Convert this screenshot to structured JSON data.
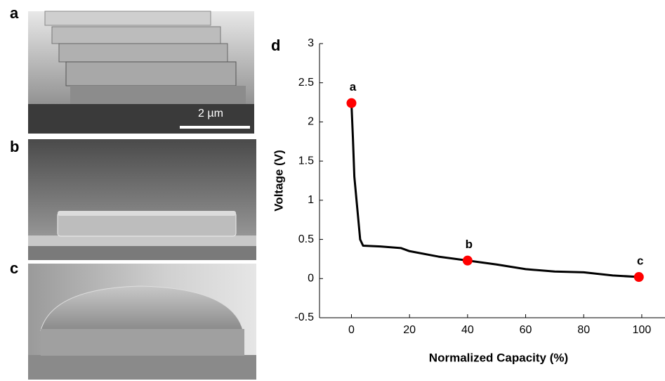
{
  "figure": {
    "panel_labels": [
      "a",
      "b",
      "c"
    ],
    "scale_bar": "2 µm"
  },
  "chart_data": {
    "type": "line",
    "panel_label": "d",
    "x_label": "Normalized Capacity (%)",
    "y_label": "Voltage (V)",
    "x": [
      0,
      0.5,
      1,
      2,
      3,
      4,
      10,
      17,
      20,
      30,
      40,
      50,
      60,
      70,
      80,
      90,
      99
    ],
    "series": [
      {
        "color": "#000000",
        "values": [
          2.24,
          1.8,
          1.3,
          0.9,
          0.5,
          0.42,
          0.41,
          0.39,
          0.35,
          0.28,
          0.23,
          0.18,
          0.12,
          0.09,
          0.08,
          0.04,
          0.02
        ]
      }
    ],
    "markers": {
      "color": "#ff0000",
      "x": [
        0,
        40,
        99
      ],
      "values": [
        2.24,
        0.23,
        0.02
      ],
      "labels": [
        "a",
        "b",
        "c"
      ]
    },
    "xlim": [
      -11,
      108
    ],
    "ylim": [
      -0.5,
      3
    ],
    "xticks": [
      0,
      20,
      40,
      60,
      80,
      100
    ],
    "yticks": [
      -0.5,
      0,
      0.5,
      1,
      1.5,
      2,
      2.5,
      3
    ]
  }
}
